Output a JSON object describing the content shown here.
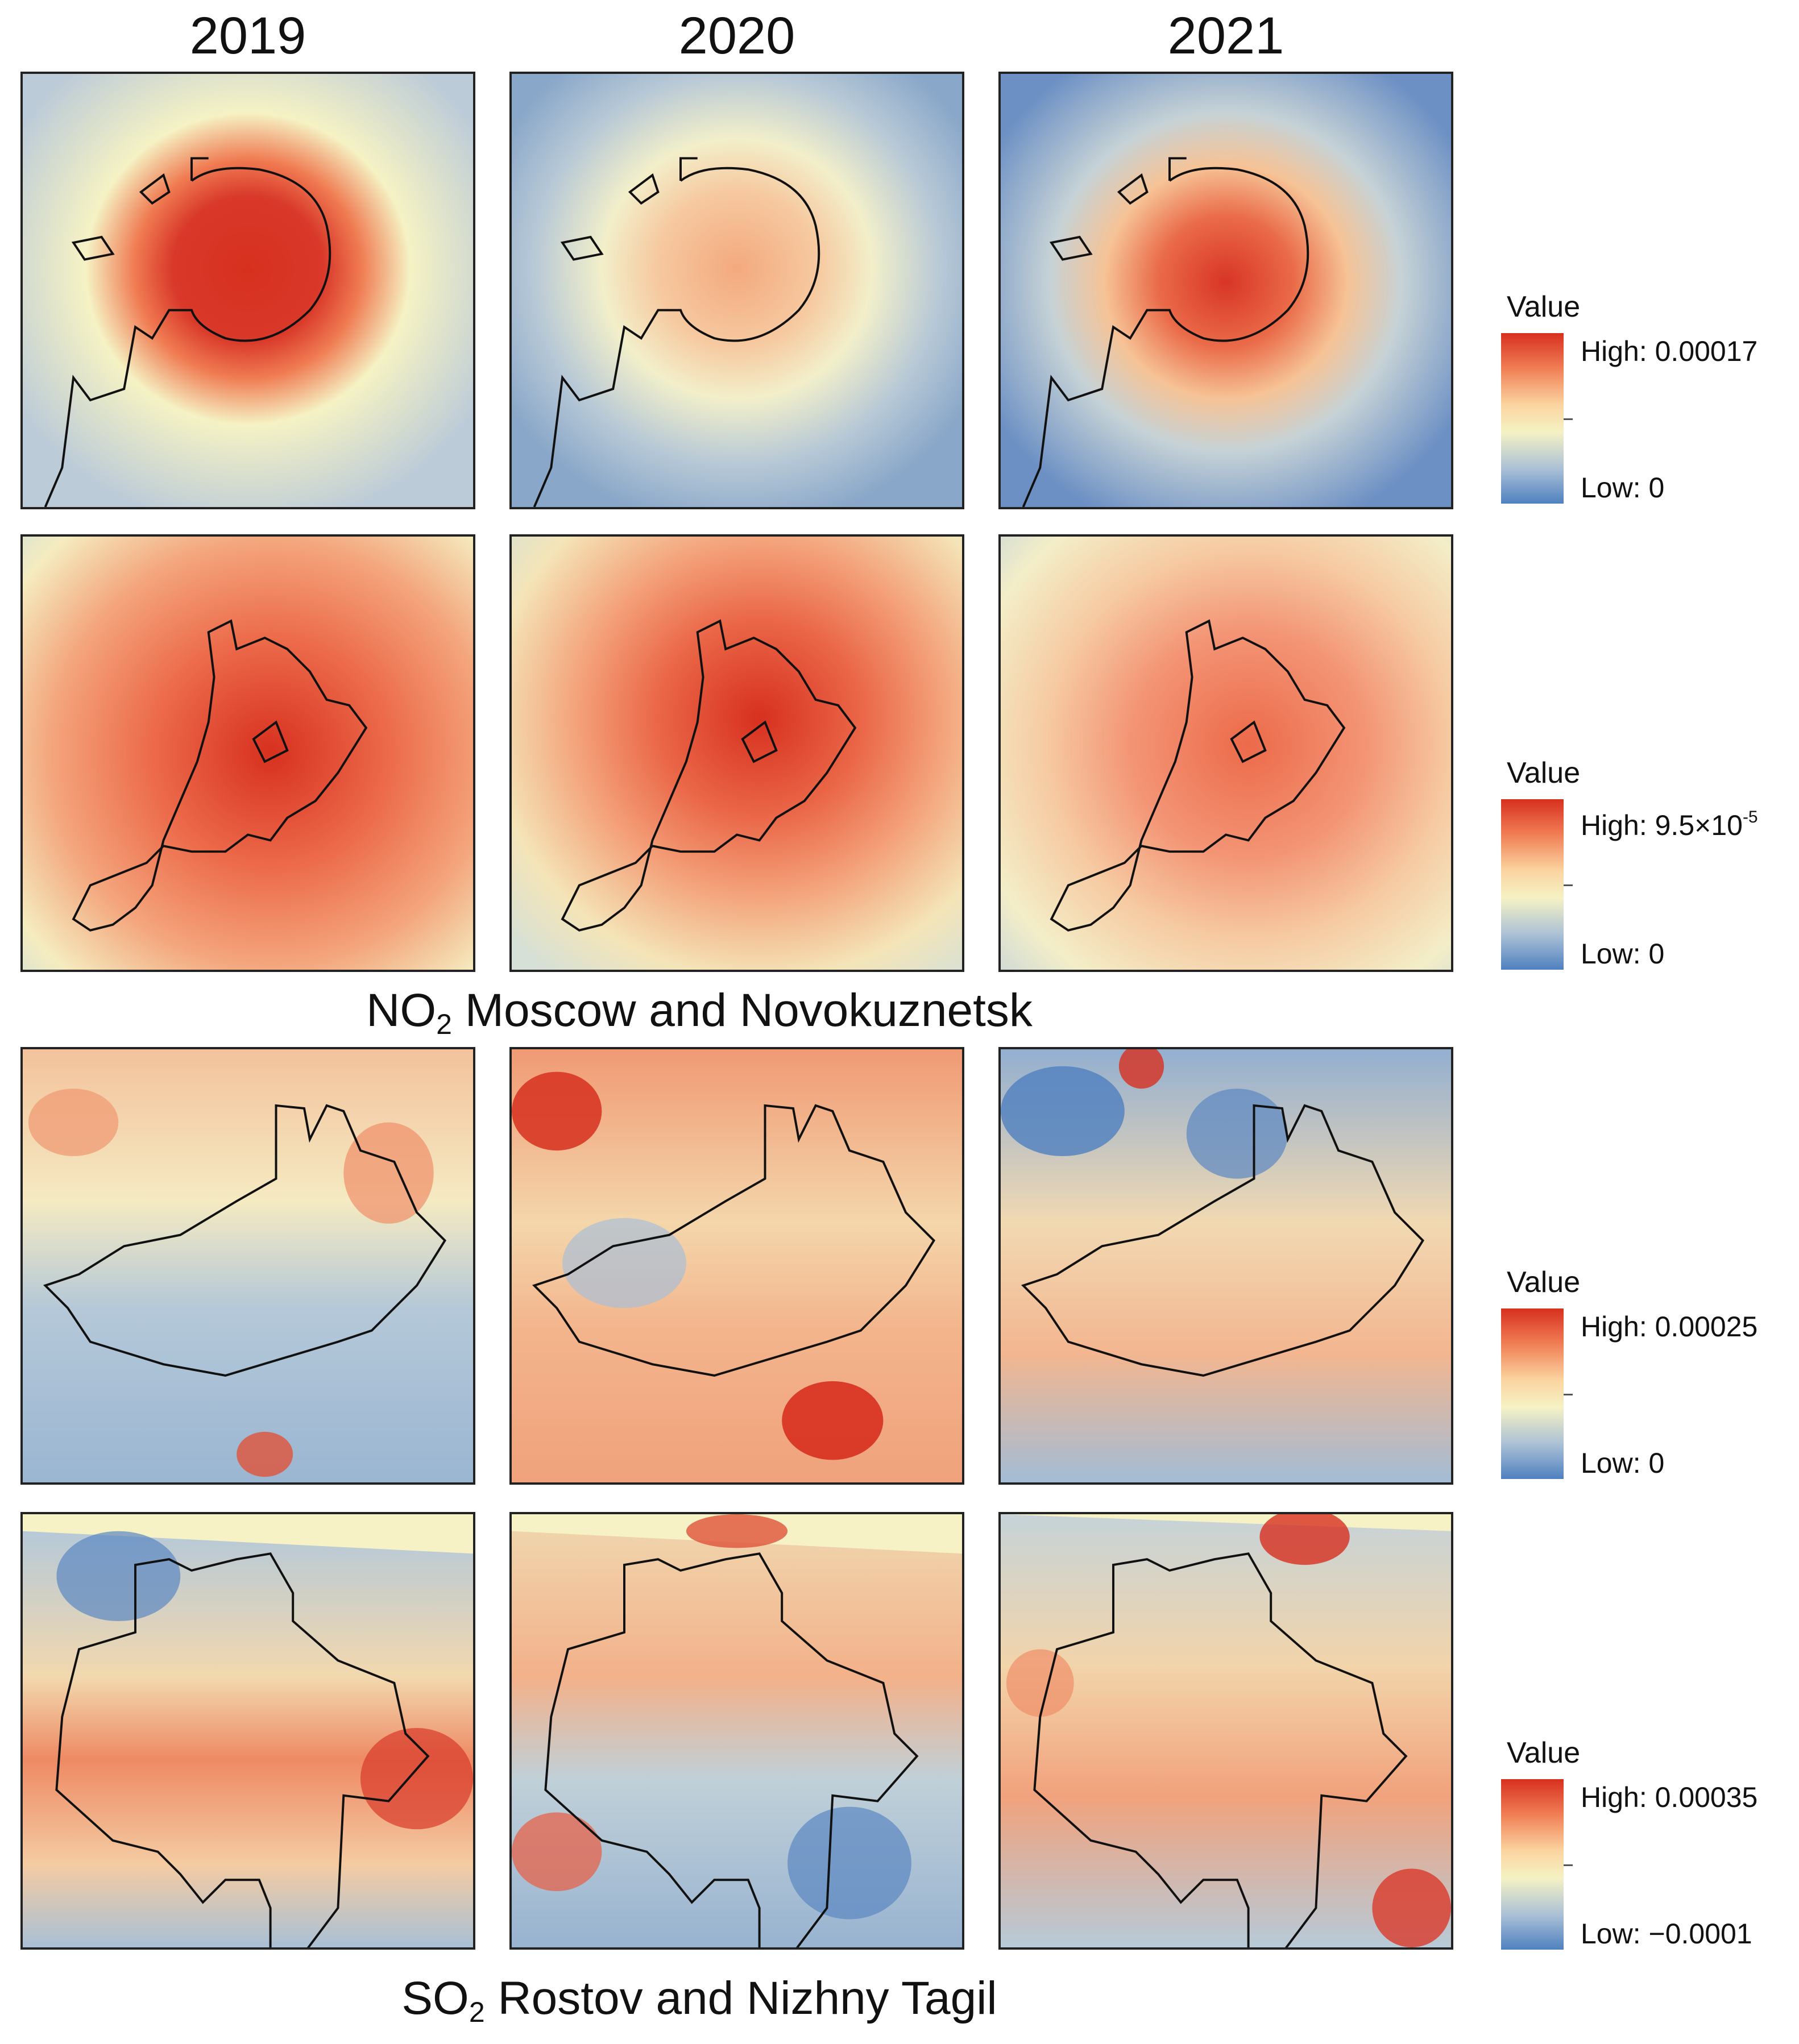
{
  "years": [
    "2019",
    "2020",
    "2021"
  ],
  "captions": {
    "no2": {
      "gas": "NO",
      "sub": "2",
      "text": "Moscow and Novokuznetsk"
    },
    "so2": {
      "gas": "SO",
      "sub": "2",
      "text": "Rostov and Nizhny Tagil"
    }
  },
  "legends": [
    {
      "title": "Value",
      "high": "High: 0.00017",
      "low": "Low: 0"
    },
    {
      "title": "Value",
      "high_prefix": "High: 9.5×10",
      "high_exp": "-5",
      "low": "Low: 0"
    },
    {
      "title": "Value",
      "high": "High: 0.00025",
      "low": "Low: 0"
    },
    {
      "title": "Value",
      "high": "High: 0.00035",
      "low": "Low: −0.0001"
    }
  ],
  "colors": {
    "high": "#d7301f",
    "mid_high": "#f07b52",
    "mid": "#f5f2c4",
    "mid_low": "#a9bfd6",
    "low": "#4f80bf",
    "outline": "#111111"
  },
  "maps": [
    {
      "row": "Moscow NO2",
      "intensity_by_year": [
        0.95,
        0.45,
        0.78
      ]
    },
    {
      "row": "Novokuznetsk NO2",
      "intensity_by_year": [
        0.9,
        0.82,
        0.6
      ]
    },
    {
      "row": "Rostov SO2",
      "intensity_by_year": [
        0.5,
        0.7,
        0.45
      ]
    },
    {
      "row": "Nizhny Tagil SO2",
      "intensity_by_year": [
        0.65,
        0.55,
        0.6
      ]
    }
  ]
}
